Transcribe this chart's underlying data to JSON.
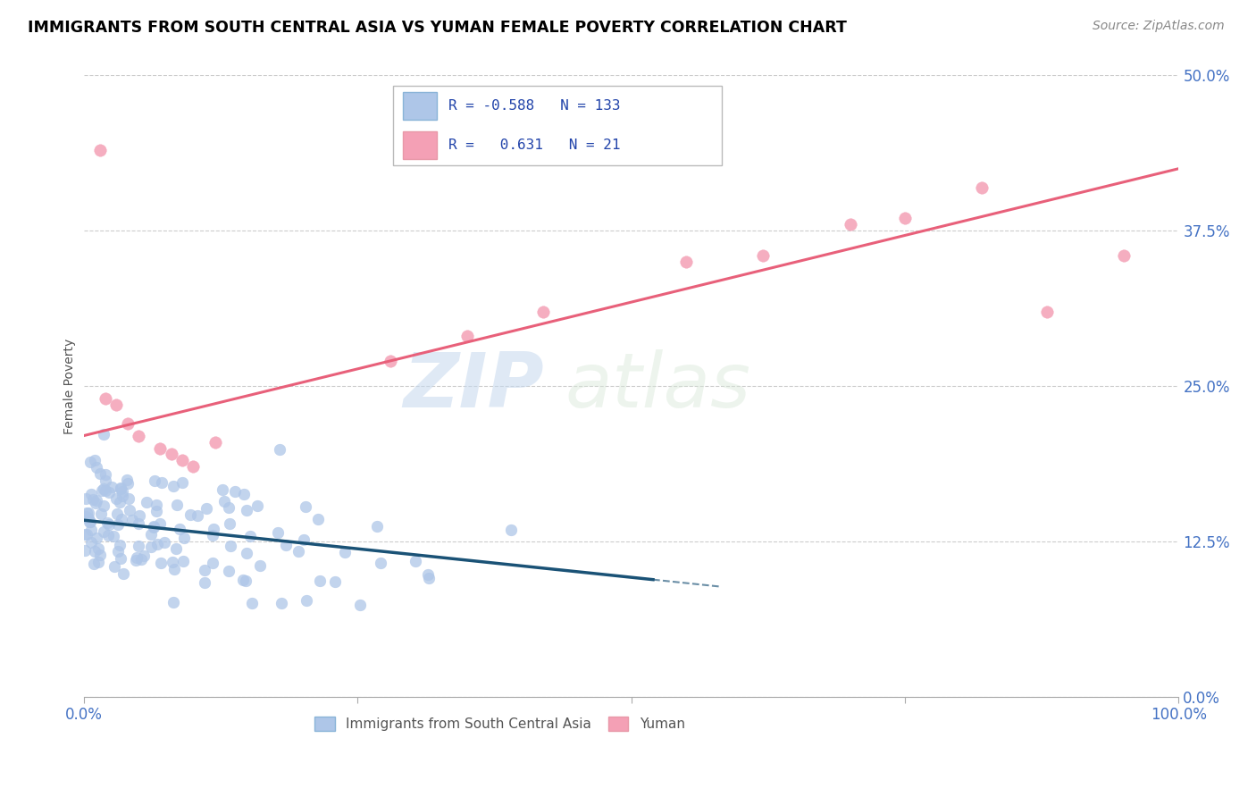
{
  "title": "IMMIGRANTS FROM SOUTH CENTRAL ASIA VS YUMAN FEMALE POVERTY CORRELATION CHART",
  "source": "Source: ZipAtlas.com",
  "ylabel": "Female Poverty",
  "ytick_values": [
    0,
    12.5,
    25.0,
    37.5,
    50.0
  ],
  "xlim": [
    0,
    100
  ],
  "ylim": [
    0,
    50
  ],
  "blue_line_color": "#1a5276",
  "pink_line_color": "#e8607a",
  "blue_scatter_color": "#aec6e8",
  "pink_scatter_color": "#f4a0b5",
  "legend_R_blue": "-0.588",
  "legend_N_blue": "133",
  "legend_R_pink": "0.631",
  "legend_N_pink": "21",
  "legend_label_blue": "Immigrants from South Central Asia",
  "legend_label_pink": "Yuman",
  "watermark_zip": "ZIP",
  "watermark_atlas": "atlas",
  "blue_slope": -0.092,
  "blue_intercept": 14.2,
  "blue_solid_end": 52,
  "blue_dashed_end": 58,
  "pink_slope": 0.215,
  "pink_intercept": 21.0,
  "pink_line_end": 100
}
